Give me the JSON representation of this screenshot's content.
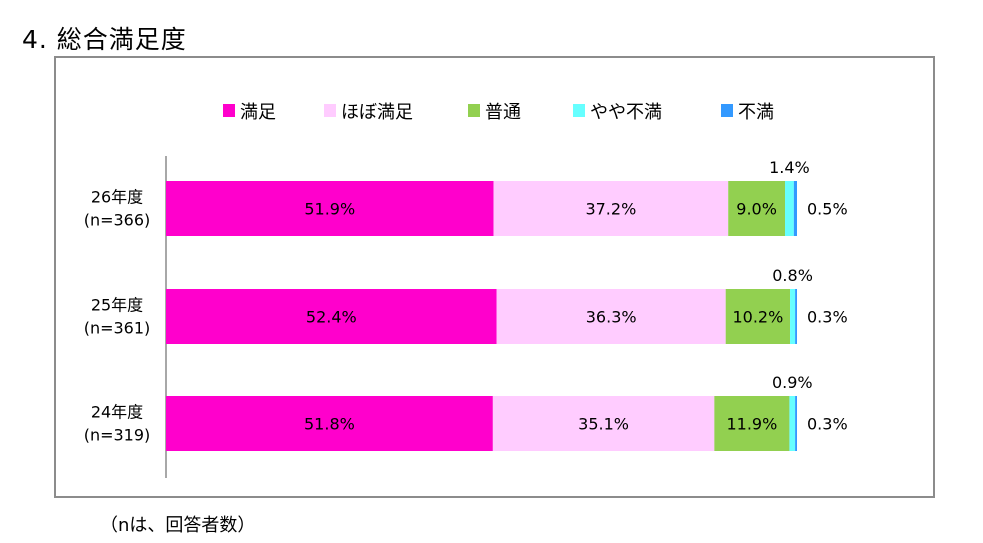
{
  "title": "4. 総合満足度",
  "note": "（nは、回答者数）",
  "chart_data": {
    "type": "bar",
    "orientation": "horizontal",
    "stacked": "100%",
    "legend_position": "top",
    "categories": [
      {
        "line1": "26年度",
        "line2": "(n=366)"
      },
      {
        "line1": "25年度",
        "line2": "(n=361)"
      },
      {
        "line1": "24年度",
        "line2": "(n=319)"
      }
    ],
    "series": [
      {
        "name": "満足",
        "color": "#ff00cc",
        "values": [
          51.9,
          52.4,
          51.8
        ]
      },
      {
        "name": "ほぼ満足",
        "color": "#ffccff",
        "values": [
          37.2,
          36.3,
          35.1
        ]
      },
      {
        "name": "普通",
        "color": "#92d050",
        "values": [
          9.0,
          10.2,
          11.9
        ]
      },
      {
        "name": "やや不満",
        "color": "#66ffff",
        "values": [
          1.4,
          0.8,
          0.9
        ]
      },
      {
        "name": "不満",
        "color": "#3399ff",
        "values": [
          0.5,
          0.3,
          0.3
        ]
      }
    ],
    "data_labels": [
      [
        "51.9%",
        "37.2%",
        "9.0%",
        "1.4%",
        "0.5%"
      ],
      [
        "52.4%",
        "36.3%",
        "10.2%",
        "0.8%",
        "0.3%"
      ],
      [
        "51.8%",
        "35.1%",
        "11.9%",
        "0.9%",
        "0.3%"
      ]
    ]
  }
}
